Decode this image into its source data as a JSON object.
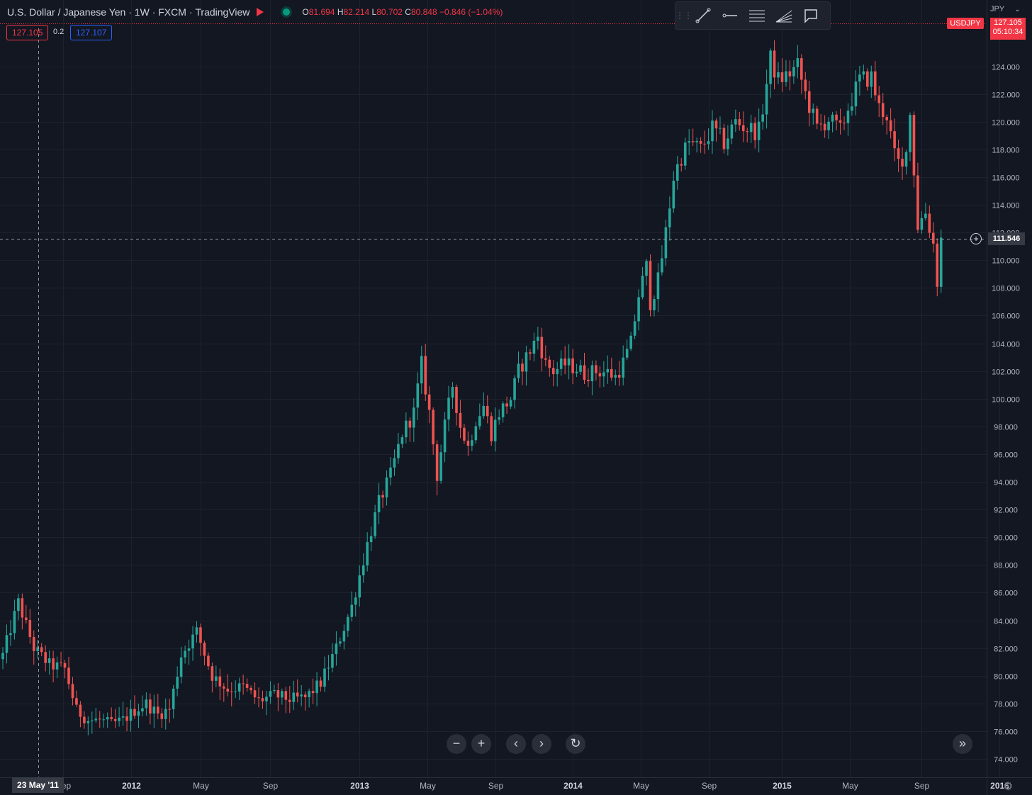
{
  "header": {
    "symbol": "U.S. Dollar / Japanese Yen",
    "sep": "·",
    "interval": "1W",
    "exchange": "FXCM",
    "provider": "TradingView",
    "o_label": "O",
    "o": "81.694",
    "h_label": "H",
    "h": "82.214",
    "l_label": "L",
    "l": "80.702",
    "c_label": "C",
    "c": "80.848",
    "change": "−0.846 (−1.04%)"
  },
  "order": {
    "sell": "127.105",
    "spread": "0.2",
    "buy": "127.107"
  },
  "toolbar": {
    "icons": [
      "trend-line-icon",
      "horizontal-ray-icon",
      "fib-retracement-icon",
      "fib-fan-icon",
      "comment-icon"
    ]
  },
  "price_scale": {
    "currency": "JPY",
    "ticker": "USDJPY",
    "last_price": "127.105",
    "countdown": "05:10:34",
    "cursor_price": "111.546"
  },
  "time_scale": {
    "cursor_date": "23 May '11"
  },
  "controls": {
    "zoom_out": "−",
    "zoom_in": "+",
    "scroll_left": "‹",
    "scroll_right": "›",
    "reset": "↻",
    "go_to_realtime": "»"
  },
  "colors": {
    "up": "#26a69a",
    "down": "#ef5350",
    "bg": "#131722",
    "grid": "#1e222d",
    "text": "#b2b5be",
    "accent_red": "#f23645"
  },
  "chart_data": {
    "type": "candlestick",
    "title": "U.S. Dollar / Japanese Yen · 1W · FXCM",
    "ylim": [
      73.2,
      126.6
    ],
    "grid": true,
    "y_ticks": [
      "74.000",
      "76.000",
      "78.000",
      "80.000",
      "82.000",
      "84.000",
      "86.000",
      "88.000",
      "90.000",
      "92.000",
      "94.000",
      "96.000",
      "98.000",
      "100.000",
      "102.000",
      "104.000",
      "106.000",
      "108.000",
      "110.000",
      "112.000",
      "114.000",
      "116.000",
      "118.000",
      "120.000",
      "122.000",
      "124.000"
    ],
    "x_ticks": [
      "Sep",
      "2012",
      "May",
      "Sep",
      "2013",
      "May",
      "Sep",
      "2014",
      "May",
      "Sep",
      "2015",
      "May",
      "Sep",
      "2016"
    ],
    "x_tick_weeks": [
      15.5,
      33,
      51,
      69,
      92,
      109.5,
      127,
      147,
      164.5,
      182,
      201,
      218.5,
      237,
      257
    ],
    "close_path": [
      [
        0,
        81.5
      ],
      [
        4,
        85.3
      ],
      [
        8,
        82.0
      ],
      [
        12,
        80.8
      ],
      [
        16,
        80.5
      ],
      [
        19,
        77.5
      ],
      [
        22,
        76.8
      ],
      [
        25,
        76.8
      ],
      [
        28,
        76.5
      ],
      [
        31,
        76.8
      ],
      [
        34,
        77.5
      ],
      [
        37,
        78.0
      ],
      [
        40,
        77.2
      ],
      [
        43,
        77.6
      ],
      [
        46,
        81.5
      ],
      [
        50,
        83.2
      ],
      [
        54,
        80.0
      ],
      [
        58,
        79.0
      ],
      [
        62,
        79.2
      ],
      [
        66,
        78.2
      ],
      [
        70,
        78.6
      ],
      [
        74,
        78.3
      ],
      [
        78,
        78.4
      ],
      [
        82,
        79.5
      ],
      [
        86,
        82.0
      ],
      [
        90,
        85.0
      ],
      [
        94,
        89.5
      ],
      [
        97,
        92.5
      ],
      [
        100,
        94.5
      ],
      [
        103,
        97.5
      ],
      [
        106,
        99.0
      ],
      [
        108,
        102.5
      ],
      [
        110,
        99.0
      ],
      [
        112,
        94.5
      ],
      [
        114,
        98.0
      ],
      [
        116,
        101.0
      ],
      [
        118,
        98.0
      ],
      [
        120,
        96.5
      ],
      [
        122,
        98.5
      ],
      [
        124,
        99.5
      ],
      [
        126,
        97.5
      ],
      [
        128,
        99.0
      ],
      [
        131,
        100.0
      ],
      [
        133,
        102.0
      ],
      [
        136,
        103.5
      ],
      [
        138,
        104.5
      ],
      [
        140,
        102.5
      ],
      [
        142,
        102.0
      ],
      [
        145,
        102.5
      ],
      [
        148,
        102.2
      ],
      [
        150,
        101.8
      ],
      [
        153,
        102.0
      ],
      [
        156,
        101.9
      ],
      [
        158,
        101.6
      ],
      [
        160,
        102.6
      ],
      [
        162,
        104.0
      ],
      [
        164,
        107.5
      ],
      [
        166,
        109.5
      ],
      [
        167,
        107.0
      ],
      [
        169,
        108.5
      ],
      [
        171,
        112.0
      ],
      [
        173,
        116.0
      ],
      [
        175,
        117.5
      ],
      [
        177,
        118.5
      ],
      [
        180,
        118.0
      ],
      [
        183,
        119.5
      ],
      [
        186,
        118.5
      ],
      [
        189,
        120.0
      ],
      [
        192,
        119.5
      ],
      [
        195,
        119.3
      ],
      [
        196,
        121.0
      ],
      [
        198,
        124.5
      ],
      [
        200,
        123.0
      ],
      [
        203,
        123.5
      ],
      [
        205,
        124.0
      ],
      [
        207,
        122.0
      ],
      [
        210,
        119.5
      ],
      [
        213,
        120.2
      ],
      [
        216,
        119.3
      ],
      [
        218,
        121.0
      ],
      [
        221,
        123.0
      ],
      [
        224,
        123.2
      ],
      [
        226,
        121.0
      ],
      [
        228,
        120.5
      ],
      [
        230,
        117.5
      ],
      [
        232,
        116.5
      ],
      [
        234,
        120.5
      ],
      [
        236,
        112.5
      ],
      [
        238,
        113.5
      ],
      [
        240,
        111.2
      ],
      [
        241,
        108.5
      ],
      [
        242,
        111.5
      ]
    ]
  }
}
